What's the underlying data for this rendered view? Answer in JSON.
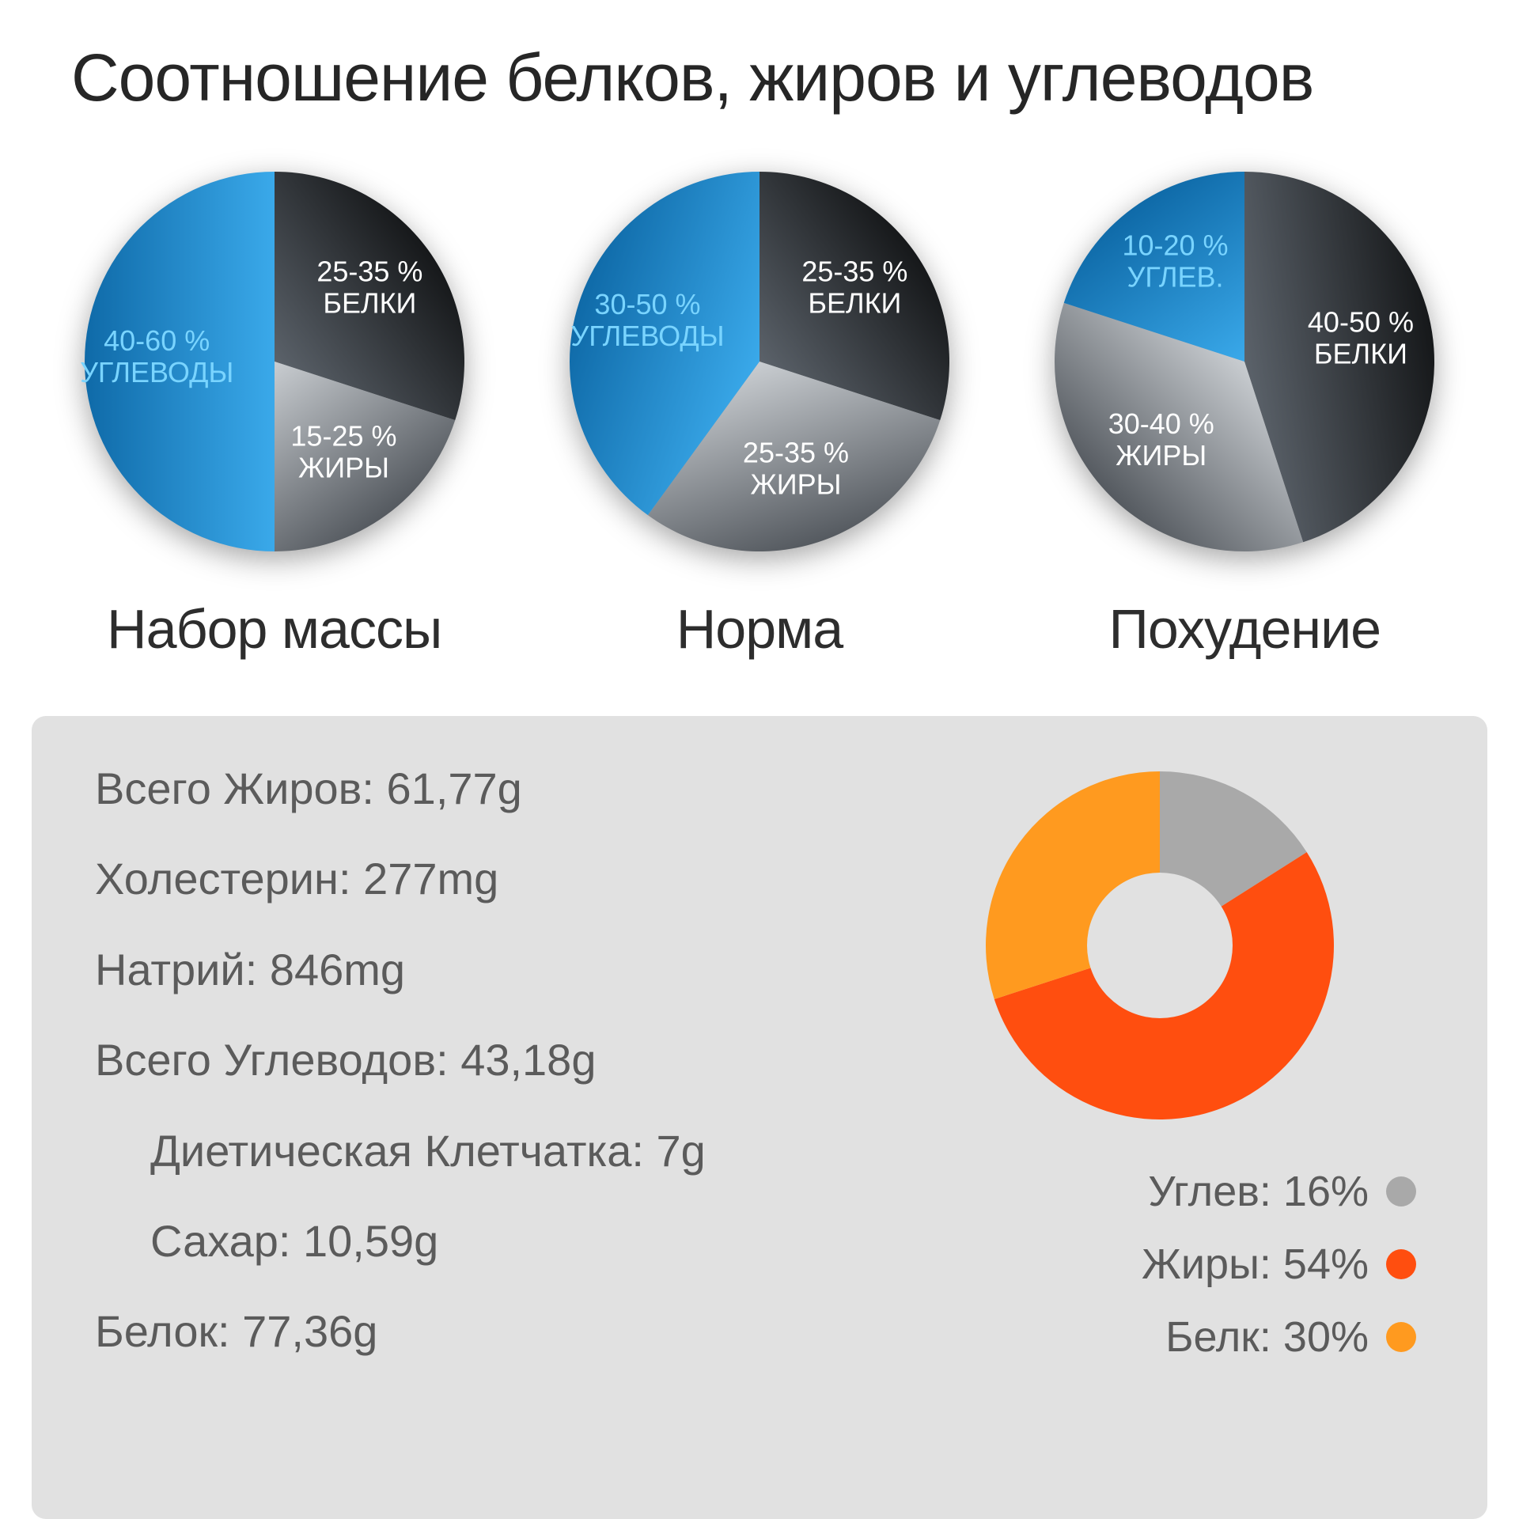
{
  "title": "Соотношение белков, жиров и углеводов",
  "title_fontsize": 84,
  "title_color": "#262626",
  "background_color": "#ffffff",
  "pies": [
    {
      "caption": "Набор массы",
      "type": "pie",
      "radius": 240,
      "slices": [
        {
          "name": "proteins",
          "pct_label": "25-35 %",
          "word_label": "БЕЛКИ",
          "value": 30,
          "color_outer": "#16181a",
          "color_inner": "#5b626a",
          "label_color": "#ffffff"
        },
        {
          "name": "fats",
          "pct_label": "15-25 %",
          "word_label": "ЖИРЫ",
          "value": 20,
          "color_outer": "#555a60",
          "color_inner": "#c9cdd1",
          "label_color": "#ffffff"
        },
        {
          "name": "carbs",
          "pct_label": "40-60 %",
          "word_label": "УГЛЕВОДЫ",
          "value": 50,
          "color_outer": "#0f6aa8",
          "color_inner": "#3aa9ea",
          "label_color": "#79d4ff"
        }
      ]
    },
    {
      "caption": "Норма",
      "type": "pie",
      "radius": 240,
      "slices": [
        {
          "name": "proteins",
          "pct_label": "25-35 %",
          "word_label": "БЕЛКИ",
          "value": 30,
          "color_outer": "#16181a",
          "color_inner": "#5b626a",
          "label_color": "#ffffff"
        },
        {
          "name": "fats",
          "pct_label": "25-35 %",
          "word_label": "ЖИРЫ",
          "value": 30,
          "color_outer": "#555a60",
          "color_inner": "#c9cdd1",
          "label_color": "#ffffff"
        },
        {
          "name": "carbs",
          "pct_label": "30-50 %",
          "word_label": "УГЛЕВОДЫ",
          "value": 40,
          "color_outer": "#0f6aa8",
          "color_inner": "#3aa9ea",
          "label_color": "#79d4ff"
        }
      ]
    },
    {
      "caption": "Похудение",
      "type": "pie",
      "radius": 240,
      "slices": [
        {
          "name": "proteins",
          "pct_label": "40-50 %",
          "word_label": "БЕЛКИ",
          "value": 45,
          "color_outer": "#16181a",
          "color_inner": "#5b626a",
          "label_color": "#ffffff"
        },
        {
          "name": "fats",
          "pct_label": "30-40 %",
          "word_label": "ЖИРЫ",
          "value": 35,
          "color_outer": "#555a60",
          "color_inner": "#c9cdd1",
          "label_color": "#ffffff"
        },
        {
          "name": "carbs",
          "pct_label": "10-20 %",
          "word_label": "УГЛЕВ.",
          "value": 20,
          "color_outer": "#0f6aa8",
          "color_inner": "#3aa9ea",
          "label_color": "#79d4ff"
        }
      ]
    }
  ],
  "panel": {
    "background_color": "#e1e1e1",
    "border_radius": 18,
    "facts_color": "#5b5b5b",
    "facts_fontsize": 56,
    "facts": [
      {
        "text": "Всего Жиров: 61,77g",
        "indent": false
      },
      {
        "text": "Холестерин: 277mg",
        "indent": false
      },
      {
        "text": "Натрий: 846mg",
        "indent": false
      },
      {
        "text": "Всего Углеводов: 43,18g",
        "indent": false
      },
      {
        "text": "Диетическая Клетчатка: 7g",
        "indent": true
      },
      {
        "text": "Сахар: 10,59g",
        "indent": true
      },
      {
        "text": "Белок: 77,36g",
        "indent": false
      }
    ],
    "donut": {
      "type": "donut",
      "outer_radius": 220,
      "inner_radius": 92,
      "hole_color": "#e1e1e1",
      "slices": [
        {
          "name": "carbs",
          "value": 16,
          "color": "#a9a9a9"
        },
        {
          "name": "fats",
          "value": 54,
          "color": "#ff4e0f"
        },
        {
          "name": "protein",
          "value": 30,
          "color": "#ff9a1f"
        }
      ]
    },
    "legend_fontsize": 54,
    "legend": [
      {
        "label": "Углев: 16%",
        "color": "#a9a9a9"
      },
      {
        "label": "Жиры: 54%",
        "color": "#ff4e0f"
      },
      {
        "label": "Белк: 30%",
        "color": "#ff9a1f"
      }
    ]
  }
}
